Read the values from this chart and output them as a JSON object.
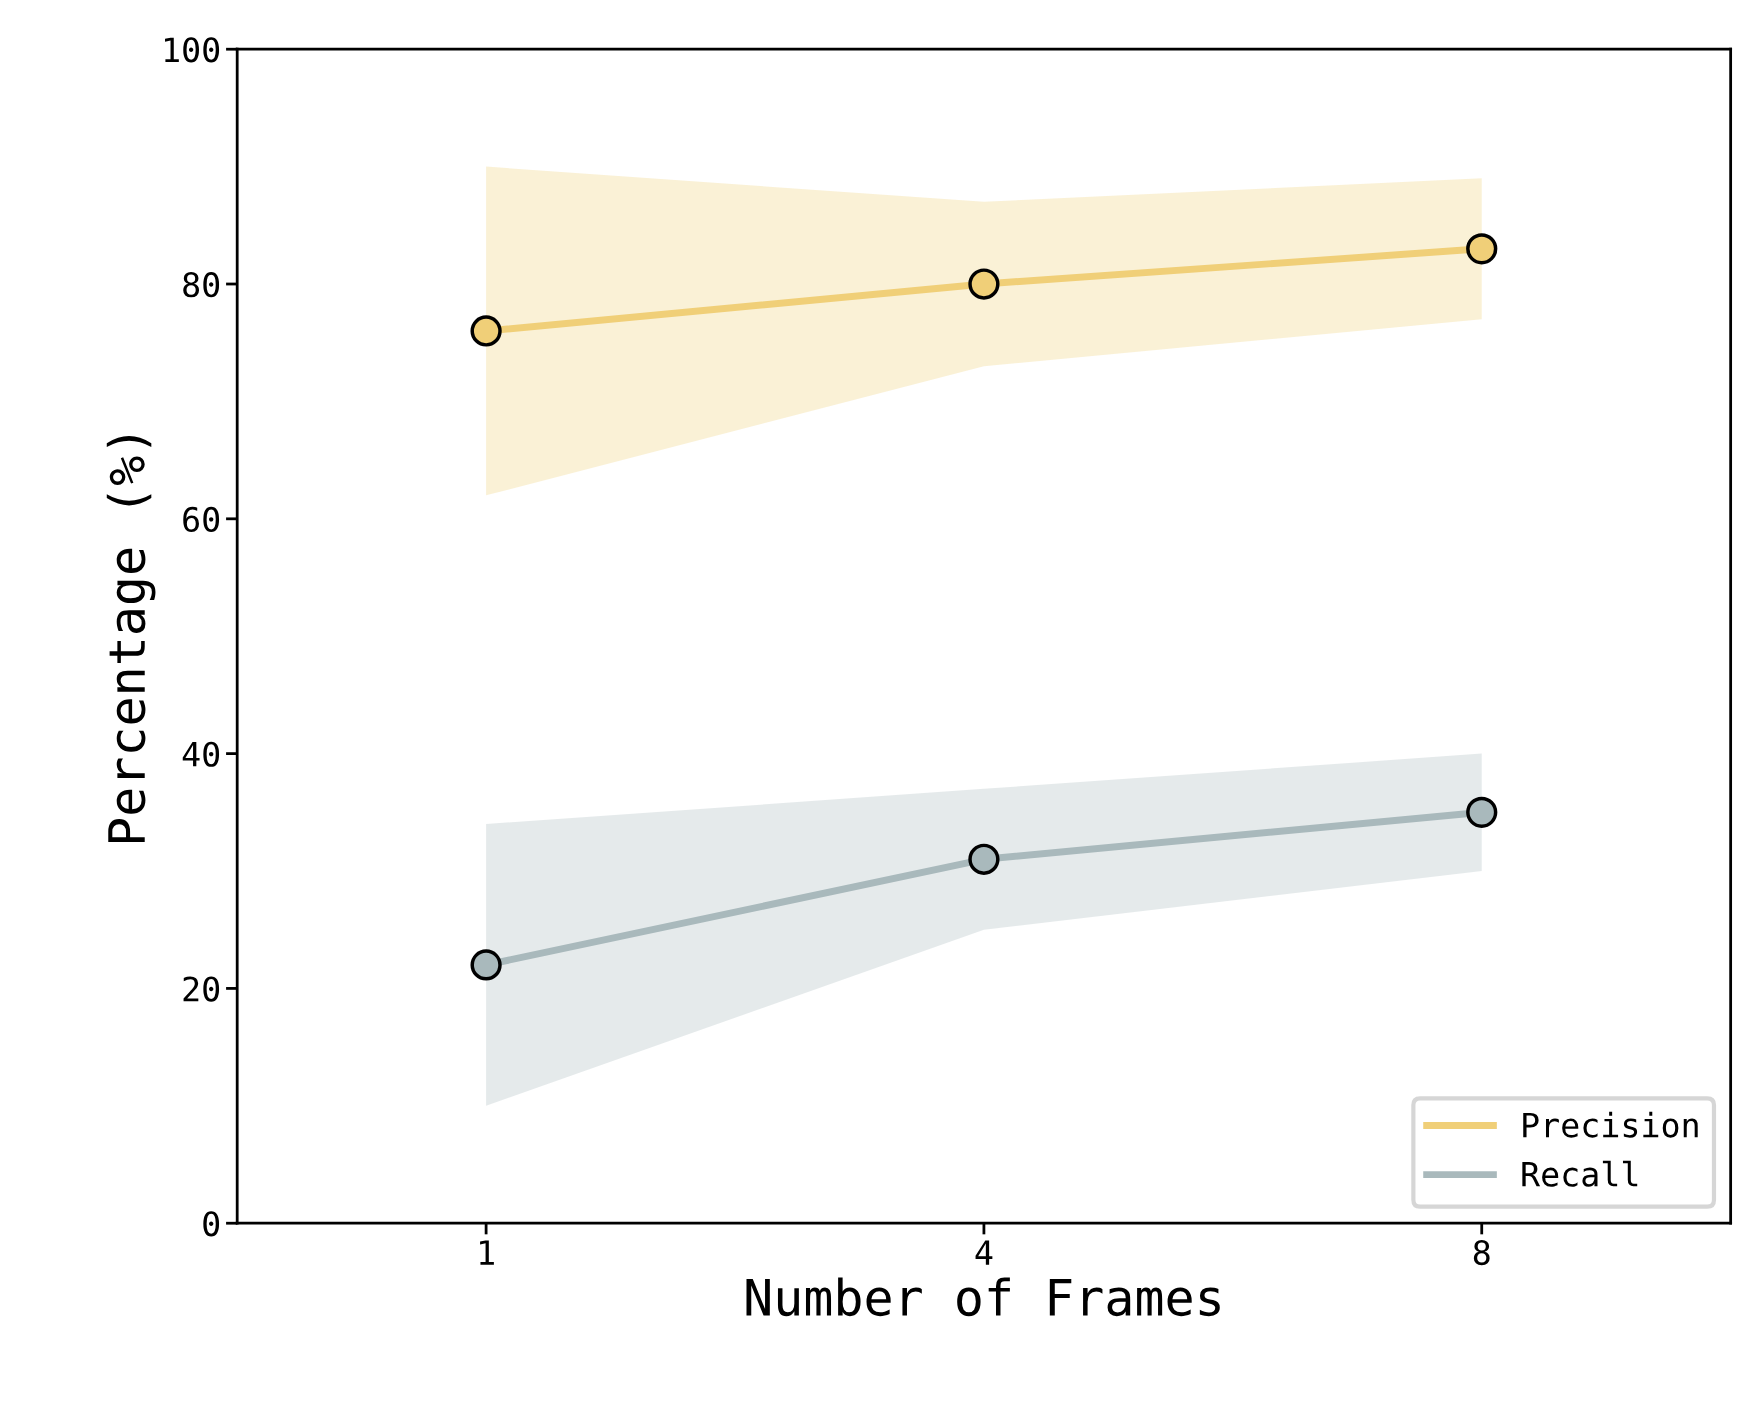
{
  "chart_data": {
    "type": "line",
    "xlabel": "Number of Frames",
    "ylabel": "Percentage (%)",
    "categories": [
      "1",
      "4",
      "8"
    ],
    "series": [
      {
        "name": "Precision",
        "color": "#f0cf78",
        "values": [
          76,
          80,
          83
        ],
        "lower": [
          62,
          73,
          77
        ],
        "upper": [
          90,
          87,
          89
        ]
      },
      {
        "name": "Recall",
        "color": "#a9b9bc",
        "values": [
          22,
          31,
          35
        ],
        "lower": [
          10,
          25,
          30
        ],
        "upper": [
          34,
          37,
          40
        ]
      }
    ],
    "ylim": [
      0,
      100
    ],
    "yticks": [
      0,
      20,
      40,
      60,
      80,
      100
    ],
    "marker": "circle",
    "line_style": "solid",
    "legend": "bottom right",
    "grid": false
  }
}
